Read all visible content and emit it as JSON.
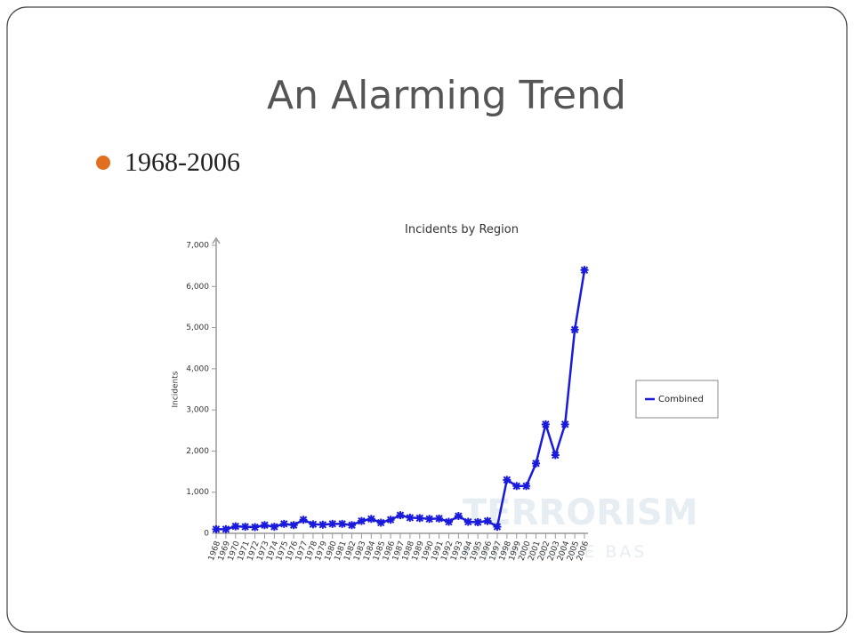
{
  "slide": {
    "title": "An Alarming Trend",
    "bullet": "1968-2006"
  },
  "chart_data": {
    "type": "line",
    "title": "Incidents by Region",
    "y_label": "Incidents",
    "categories": [
      "1968",
      "1969",
      "1970",
      "1971",
      "1972",
      "1973",
      "1974",
      "1975",
      "1976",
      "1977",
      "1978",
      "1979",
      "1980",
      "1981",
      "1982",
      "1983",
      "1984",
      "1985",
      "1986",
      "1987",
      "1988",
      "1989",
      "1990",
      "1991",
      "1992",
      "1993",
      "1994",
      "1995",
      "1996",
      "1997",
      "1998",
      "1999",
      "2000",
      "2001",
      "2002",
      "2003",
      "2004",
      "2005",
      "2006"
    ],
    "series": [
      {
        "name": "Combined",
        "color": "#1a1adc",
        "values": [
          100,
          100,
          170,
          160,
          150,
          200,
          160,
          230,
          200,
          330,
          220,
          210,
          230,
          230,
          200,
          300,
          350,
          260,
          330,
          440,
          380,
          370,
          350,
          360,
          280,
          420,
          280,
          270,
          300,
          160,
          1300,
          1150,
          1150,
          1700,
          2650,
          1900,
          2650,
          4950,
          6400
        ]
      }
    ],
    "ylim": [
      0,
      7000
    ],
    "yticks": [
      0,
      {
        "value": 1000,
        "label": "1,000"
      },
      {
        "value": 2000,
        "label": "2,000"
      },
      {
        "value": 3000,
        "label": "3,000"
      },
      {
        "value": 4000,
        "label": "4,000"
      },
      {
        "value": 5000,
        "label": "5,000"
      },
      {
        "value": 6000,
        "label": "6,000"
      },
      {
        "value": 7000,
        "label": "7,000"
      }
    ],
    "legend": "right",
    "watermark": [
      "TERRORISM",
      "KNOWLEDGE BAS"
    ]
  }
}
